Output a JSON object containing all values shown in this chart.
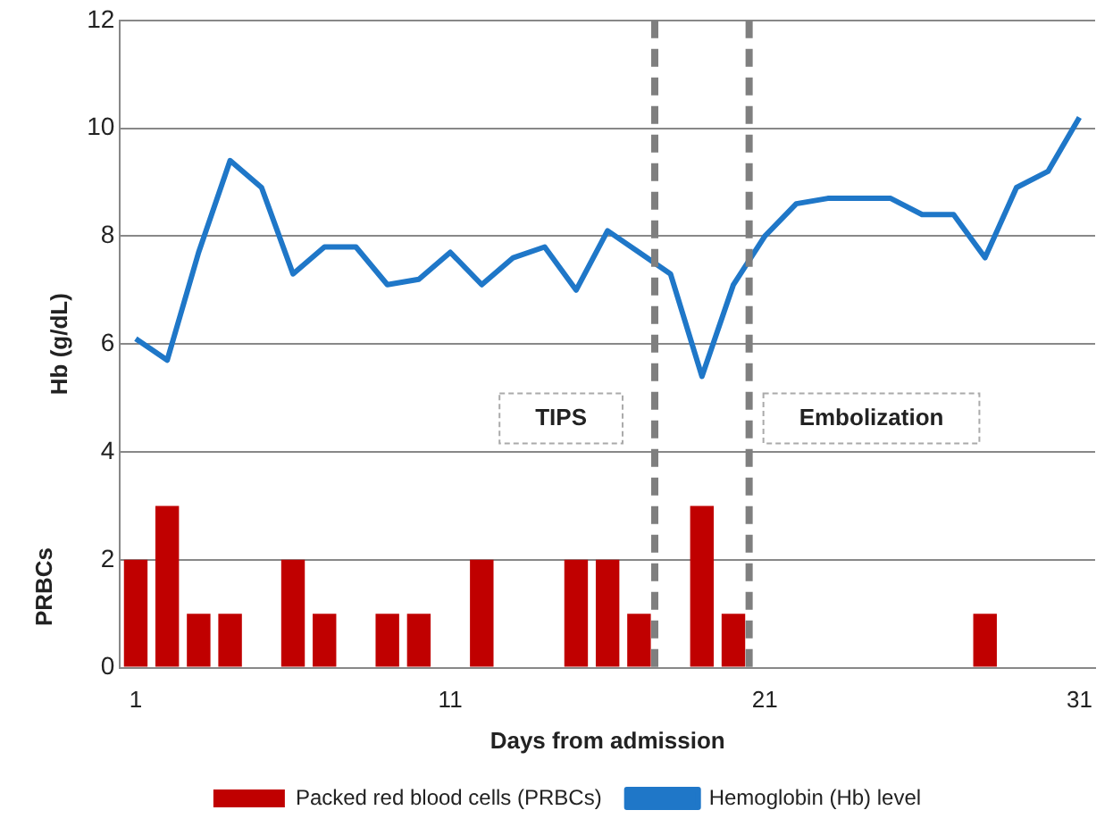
{
  "chart_data": {
    "type": "bar",
    "xlabel": "Days from admission",
    "ylabel": "Hb (g/dL)",
    "xlim": [
      0.5,
      31.5
    ],
    "xticks": [
      1,
      11,
      21,
      31
    ],
    "ylim": [
      0,
      12
    ],
    "yticks": [
      0,
      2,
      4,
      6,
      8,
      10,
      12
    ],
    "grid": "y",
    "legend": "bottom",
    "series": [
      {
        "name": "Packed red blood cells (PRBCs)",
        "color": "#c00000",
        "x": [
          1,
          2,
          3,
          4,
          6,
          7,
          9,
          10,
          12,
          15,
          16,
          17,
          19,
          20,
          28
        ],
        "values": [
          2,
          3,
          1,
          1,
          2,
          1,
          1,
          1,
          2,
          2,
          2,
          1,
          3,
          1,
          1
        ]
      },
      {
        "name": "Hemoglobin (Hb) level",
        "type": "line",
        "color": "#1f77c8",
        "marker": "none",
        "x": [
          1,
          2,
          3,
          4,
          5,
          6,
          7,
          8,
          9,
          10,
          11,
          12,
          13,
          14,
          15,
          16,
          17,
          18,
          19,
          20,
          21,
          22,
          23,
          24,
          25,
          26,
          27,
          28,
          29,
          30,
          31
        ],
        "values": [
          6.1,
          5.7,
          7.7,
          9.4,
          8.9,
          7.3,
          7.8,
          7.8,
          7.1,
          7.2,
          7.7,
          7.1,
          7.6,
          7.8,
          7.0,
          8.1,
          7.7,
          7.3,
          5.4,
          7.1,
          8.0,
          8.6,
          8.7,
          8.7,
          8.7,
          8.4,
          8.4,
          7.6,
          8.9,
          9.2,
          10.2
        ]
      }
    ],
    "ref_lines": [
      {
        "axis": "x",
        "value": 17.5,
        "color": "#7f7f7f",
        "line_style": "dashed"
      },
      {
        "axis": "x",
        "value": 20.5,
        "color": "#7f7f7f",
        "line_style": "dashed"
      }
    ],
    "annotations": [
      "TIPS",
      "Embolization",
      "PRBCs"
    ]
  }
}
